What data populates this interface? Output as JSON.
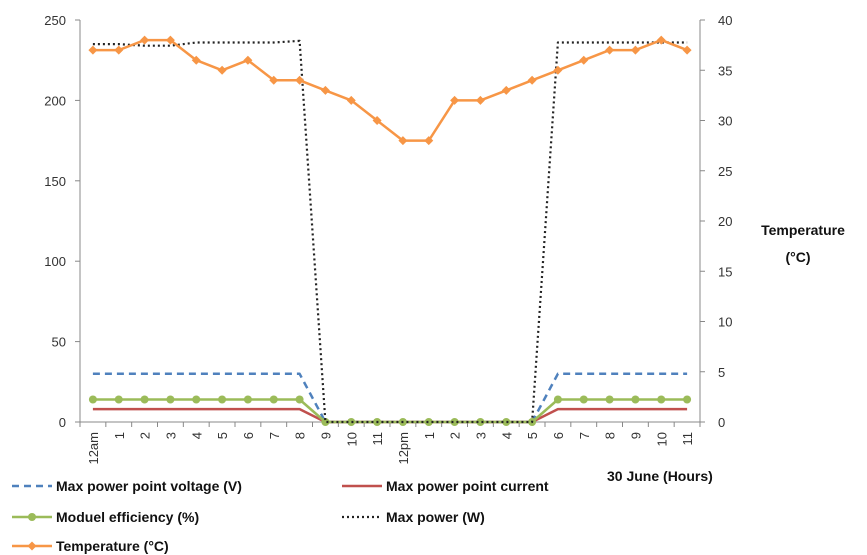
{
  "chart_data": {
    "type": "line",
    "x": [
      "12am",
      "1",
      "2",
      "3",
      "4",
      "5",
      "6",
      "7",
      "8",
      "9",
      "10",
      "11",
      "12pm",
      "1",
      "2",
      "3",
      "4",
      "5",
      "6",
      "7",
      "8",
      "9",
      "10",
      "11"
    ],
    "xlabel": "30 June (Hours)",
    "y_left": {
      "ylim": [
        0,
        250
      ],
      "ticks": [
        0,
        50,
        100,
        150,
        200,
        250
      ]
    },
    "y_right": {
      "ylabel_line1": "Temperature",
      "ylabel_line2": "(°C)",
      "ylim": [
        0,
        40
      ],
      "ticks": [
        0,
        5,
        10,
        15,
        20,
        25,
        30,
        35,
        40
      ]
    },
    "series": [
      {
        "name": "Max power point voltage (V)",
        "axis": "left",
        "color": "#4f81bd",
        "style": "dashed",
        "values": [
          30,
          30,
          30,
          30,
          30,
          30,
          30,
          30,
          30,
          0,
          0,
          0,
          0,
          0,
          0,
          0,
          0,
          0,
          30,
          30,
          30,
          30,
          30,
          30
        ]
      },
      {
        "name": "Max power point current",
        "axis": "left",
        "color": "#c0504d",
        "style": "solid",
        "values": [
          8,
          8,
          8,
          8,
          8,
          8,
          8,
          8,
          8,
          0,
          0,
          0,
          0,
          0,
          0,
          0,
          0,
          0,
          8,
          8,
          8,
          8,
          8,
          8
        ]
      },
      {
        "name": "Moduel efficiency (%)",
        "axis": "left",
        "color": "#9bbb59",
        "style": "solid-circle",
        "values": [
          14,
          14,
          14,
          14,
          14,
          14,
          14,
          14,
          14,
          0,
          0,
          0,
          0,
          0,
          0,
          0,
          0,
          0,
          14,
          14,
          14,
          14,
          14,
          14
        ]
      },
      {
        "name": "Max power (W)",
        "axis": "left",
        "color": "#222222",
        "style": "dotted",
        "values": [
          235,
          235,
          234,
          234,
          236,
          236,
          236,
          236,
          237,
          0,
          0,
          0,
          0,
          0,
          0,
          0,
          0,
          0,
          236,
          236,
          236,
          236,
          236,
          236
        ]
      },
      {
        "name": "Temperature (°C)",
        "axis": "right",
        "color": "#f79646",
        "style": "solid-diamond",
        "values": [
          37,
          37,
          38,
          38,
          36,
          35,
          36,
          34,
          34,
          33,
          32,
          30,
          28,
          28,
          32,
          32,
          33,
          34,
          35,
          36,
          37,
          37,
          38,
          37
        ]
      }
    ]
  }
}
